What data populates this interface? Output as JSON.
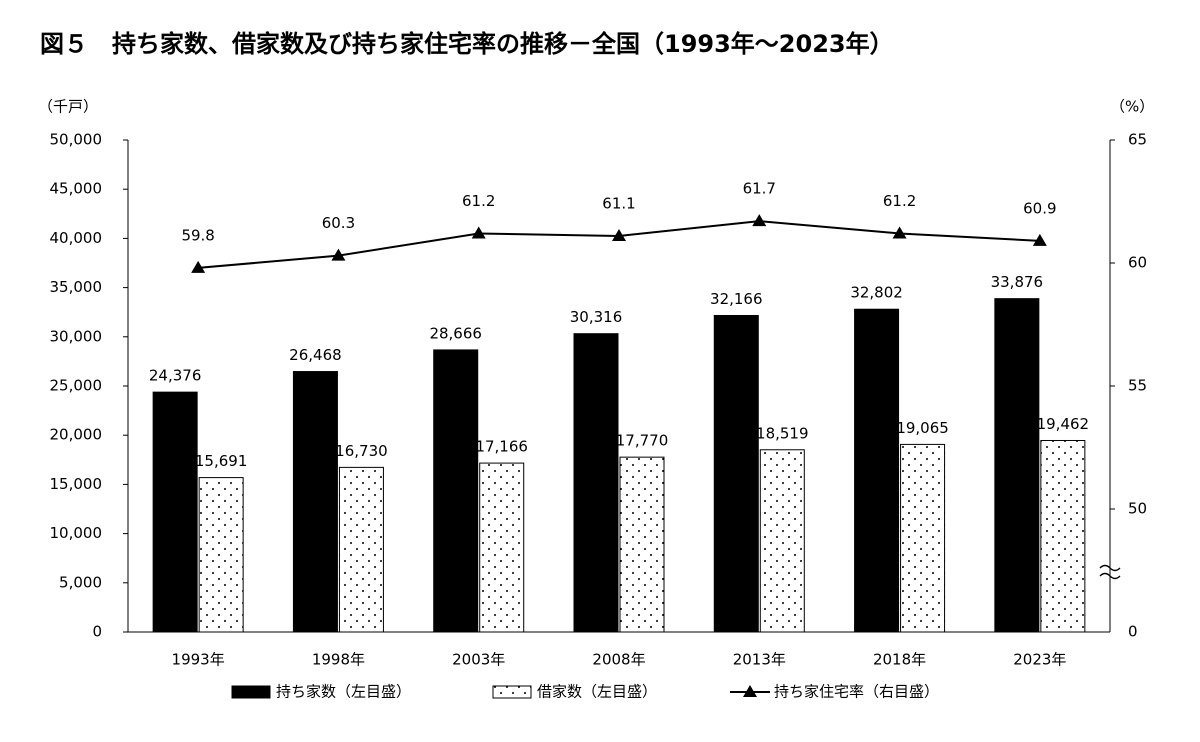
{
  "chart_data": {
    "type": "bar",
    "title": "図５　持ち家数、借家数及び持ち家住宅率の推移－全国（1993年～2023年）",
    "y_label": "（千戸）",
    "y2_label": "（%）",
    "categories": [
      "1993年",
      "1998年",
      "2003年",
      "2008年",
      "2013年",
      "2018年",
      "2023年"
    ],
    "series": [
      {
        "name": "持ち家数（左目盛）",
        "type": "bar",
        "color": "#000000",
        "values": [
          24376,
          26468,
          28666,
          30316,
          32166,
          32802,
          33876
        ],
        "value_labels": [
          "24,376",
          "26,468",
          "28,666",
          "30,316",
          "32,166",
          "32,802",
          "33,876"
        ]
      },
      {
        "name": "借家数（左目盛）",
        "type": "bar",
        "color": "#ffffff",
        "pattern": "dots",
        "values": [
          15691,
          16730,
          17166,
          17770,
          18519,
          19065,
          19462
        ],
        "value_labels": [
          "15,691",
          "16,730",
          "17,166",
          "17,770",
          "18,519",
          "19,065",
          "19,462"
        ]
      },
      {
        "name": "持ち家住宅率（右目盛）",
        "type": "line",
        "color": "#000000",
        "axis": "y2",
        "values": [
          59.8,
          60.3,
          61.2,
          61.1,
          61.7,
          61.2,
          60.9
        ]
      }
    ],
    "ylim": [
      0,
      50000
    ],
    "yticks": [
      0,
      {
        "value": 5000,
        "label": "5,000"
      },
      {
        "value": 10000,
        "label": "10,000"
      },
      {
        "value": 15000,
        "label": "15,000"
      },
      {
        "value": 20000,
        "label": "20,000"
      },
      {
        "value": 25000,
        "label": "25,000"
      },
      {
        "value": 30000,
        "label": "30,000"
      },
      {
        "value": 35000,
        "label": "35,000"
      },
      {
        "value": 40000,
        "label": "40,000"
      },
      {
        "value": 45000,
        "label": "45,000"
      },
      {
        "value": 50000,
        "label": "50,000"
      }
    ],
    "y2lim": [
      45,
      65
    ],
    "y2ticks": [
      50,
      55,
      60,
      65
    ],
    "y2_origin_label": 0,
    "y2_break": true,
    "grid": false,
    "legend": "bottom"
  }
}
